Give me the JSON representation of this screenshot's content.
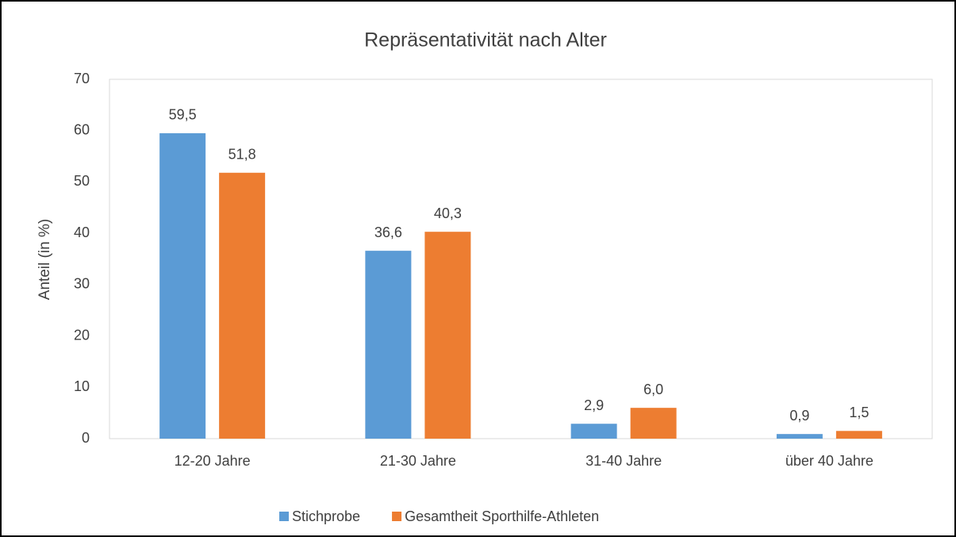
{
  "chart_data": {
    "type": "bar",
    "title": "Repräsentativität nach Alter",
    "y_label": "Anteil (in %)",
    "categories": [
      "12-20 Jahre",
      "21-30 Jahre",
      "31-40 Jahre",
      "über 40 Jahre"
    ],
    "series": [
      {
        "name": "Stichprobe",
        "color": "#5b9bd5",
        "values": [
          59.5,
          36.6,
          2.9,
          0.9
        ],
        "value_labels": [
          "59,5",
          "36,6",
          "2,9",
          "0,9"
        ]
      },
      {
        "name": "Gesamtheit Sporthilfe-Athleten",
        "color": "#ed7d31",
        "values": [
          51.8,
          40.3,
          6.0,
          1.5
        ],
        "value_labels": [
          "51,8",
          "40,3",
          "6,0",
          "1,5"
        ]
      }
    ],
    "ylim": [
      0,
      70
    ],
    "yticks": [
      0,
      10,
      20,
      30,
      40,
      50,
      60,
      70
    ],
    "grid": false,
    "legend": "bottom"
  }
}
